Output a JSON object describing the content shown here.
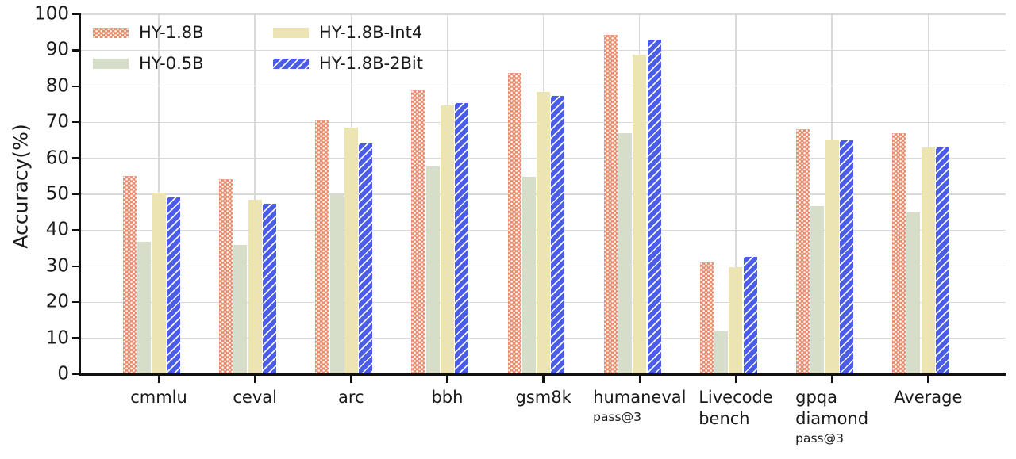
{
  "chart_data": {
    "type": "bar",
    "title": "",
    "xlabel": "",
    "ylabel": "Accuracy(%)",
    "ylim": [
      0,
      100
    ],
    "yticks": [
      0,
      10,
      20,
      30,
      40,
      50,
      60,
      70,
      80,
      90,
      100
    ],
    "grid": true,
    "legend_position": "upper-left, 2 columns, frameless",
    "axis_color": "#111111",
    "grid_color": "#d9d9d9",
    "categories": [
      {
        "lines": [
          "cmmlu"
        ],
        "sub": ""
      },
      {
        "lines": [
          "ceval"
        ],
        "sub": ""
      },
      {
        "lines": [
          "arc"
        ],
        "sub": ""
      },
      {
        "lines": [
          "bbh"
        ],
        "sub": ""
      },
      {
        "lines": [
          "gsm8k"
        ],
        "sub": ""
      },
      {
        "lines": [
          "humaneval"
        ],
        "sub": "pass@3"
      },
      {
        "lines": [
          "Livecode",
          "bench"
        ],
        "sub": ""
      },
      {
        "lines": [
          "gpqa",
          "diamond"
        ],
        "sub": "pass@3"
      },
      {
        "lines": [
          "Average"
        ],
        "sub": ""
      }
    ],
    "series": [
      {
        "name": "HY-1.8B",
        "color": "#e98a6b",
        "pattern": "dots",
        "values": [
          55.0,
          54.2,
          70.4,
          78.9,
          83.8,
          94.3,
          31.1,
          68.1,
          67.0
        ]
      },
      {
        "name": "HY-0.5B",
        "color": "#d6ddc8",
        "pattern": "solid",
        "values": [
          36.8,
          35.8,
          49.8,
          57.8,
          54.8,
          66.9,
          11.9,
          46.7,
          45.0
        ]
      },
      {
        "name": "HY-1.8B-Int4",
        "color": "#ede4b4",
        "pattern": "solid",
        "values": [
          50.5,
          48.4,
          68.6,
          74.6,
          78.5,
          88.7,
          29.8,
          65.2,
          63.1
        ]
      },
      {
        "name": "HY-1.8B-2Bit",
        "color": "#4a5ce8",
        "pattern": "hatch",
        "values": [
          49.2,
          47.4,
          64.2,
          75.4,
          77.3,
          93.0,
          32.5,
          65.0,
          62.9
        ]
      }
    ]
  }
}
